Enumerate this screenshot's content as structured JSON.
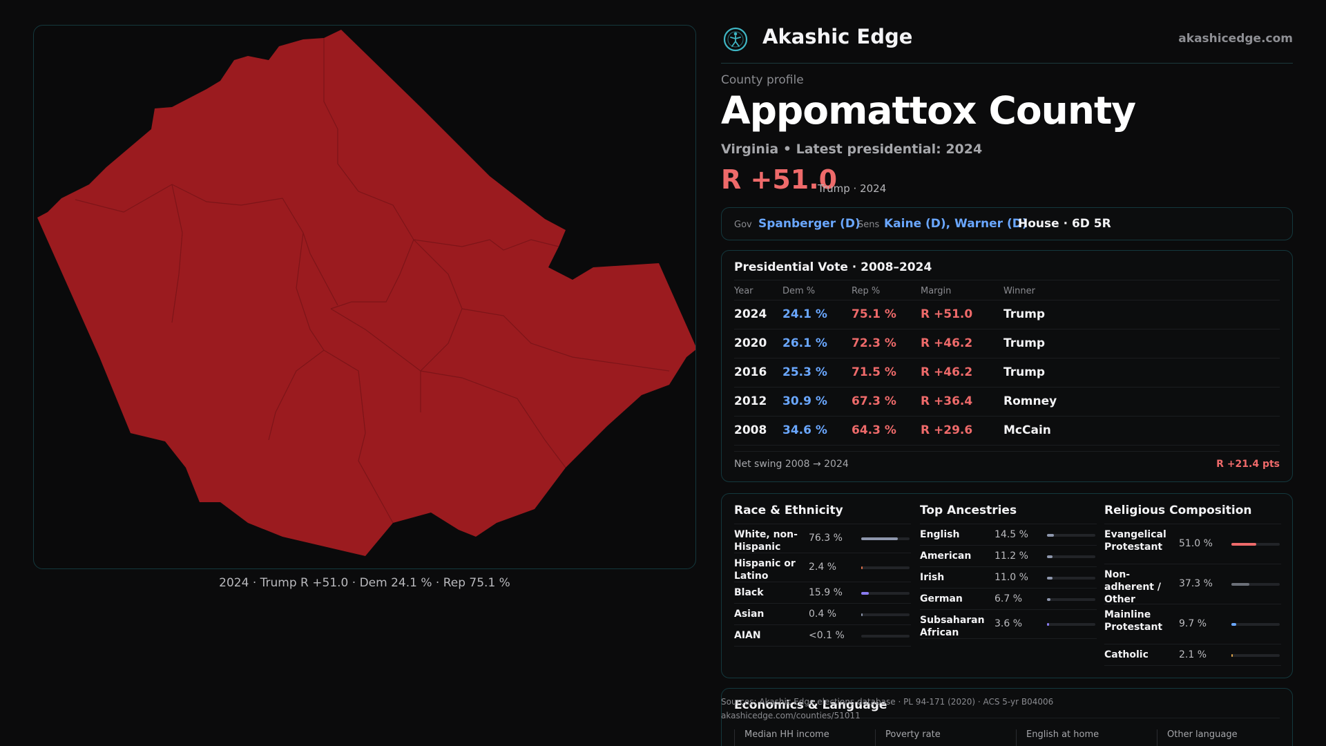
{
  "map": {
    "fill_color": "#9b1b1f",
    "caption": "2024 · Trump R +51.0 · Dem 24.1 % · Rep 75.1 %"
  },
  "brand": {
    "name": "Akashic Edge",
    "url": "akashicedge.com",
    "logo_icon": "globe-figure-icon"
  },
  "profile": {
    "eyebrow": "County profile",
    "title": "Appomattox County",
    "subline": "Virginia • Latest presidential: 2024",
    "margin": "R +51.0",
    "margin_sub": "Trump · 2024"
  },
  "officials": {
    "gov_label": "Gov",
    "gov_value": "Spanberger (D)",
    "sens_label": "Sens",
    "sens_value": "Kaine (D), Warner (D)",
    "house": "House · 6D 5R"
  },
  "presidential": {
    "title": "Presidential Vote · 2008–2024",
    "headers": {
      "year": "Year",
      "dem": "Dem %",
      "rep": "Rep %",
      "margin": "Margin",
      "winner": "Winner"
    },
    "rows": [
      {
        "year": "2024",
        "dem": "24.1 %",
        "rep": "75.1 %",
        "margin": "R +51.0",
        "winner": "Trump"
      },
      {
        "year": "2020",
        "dem": "26.1 %",
        "rep": "72.3 %",
        "margin": "R +46.2",
        "winner": "Trump"
      },
      {
        "year": "2016",
        "dem": "25.3 %",
        "rep": "71.5 %",
        "margin": "R +46.2",
        "winner": "Trump"
      },
      {
        "year": "2012",
        "dem": "30.9 %",
        "rep": "67.3 %",
        "margin": "R +36.4",
        "winner": "Romney"
      },
      {
        "year": "2008",
        "dem": "34.6 %",
        "rep": "64.3 %",
        "margin": "R +29.6",
        "winner": "McCain"
      }
    ],
    "swing_label": "Net swing 2008 → 2024",
    "swing_value": "R +21.4 pts"
  },
  "race": {
    "title": "Race & Ethnicity",
    "bar_color": "#8e97ad",
    "items": [
      {
        "label": "White, non-Hispanic",
        "pct": "76.3 %",
        "value": 0.763,
        "color": "#8e97ad"
      },
      {
        "label": "Hispanic or Latino",
        "pct": "2.4 %",
        "value": 0.024,
        "color": "#e0704a"
      },
      {
        "label": "Black",
        "pct": "15.9 %",
        "value": 0.159,
        "color": "#8a7cf0"
      },
      {
        "label": "Asian",
        "pct": "0.4 %",
        "value": 0.004,
        "color": "#8e97ad"
      },
      {
        "label": "AIAN",
        "pct": "<0.1 %",
        "value": 0.0,
        "color": "#8e97ad"
      }
    ]
  },
  "ancestry": {
    "title": "Top Ancestries",
    "items": [
      {
        "label": "English",
        "pct": "14.5 %",
        "value": 0.145,
        "color": "#8e97ad"
      },
      {
        "label": "American",
        "pct": "11.2 %",
        "value": 0.112,
        "color": "#8e97ad"
      },
      {
        "label": "Irish",
        "pct": "11.0 %",
        "value": 0.11,
        "color": "#8e97ad"
      },
      {
        "label": "German",
        "pct": "6.7 %",
        "value": 0.067,
        "color": "#8e97ad"
      },
      {
        "label": "Subsaharan African",
        "pct": "3.6 %",
        "value": 0.036,
        "color": "#8a7cf0"
      }
    ]
  },
  "religion": {
    "title": "Religious Composition",
    "items": [
      {
        "label": "Evangelical Protestant",
        "pct": "51.0 %",
        "value": 0.51,
        "color": "#ee6a6a"
      },
      {
        "label": "Non-adherent / Other",
        "pct": "37.3 %",
        "value": 0.373,
        "color": "#6b6f78"
      },
      {
        "label": "Mainline Protestant",
        "pct": "9.7 %",
        "value": 0.097,
        "color": "#6aa7ff"
      },
      {
        "label": "Catholic",
        "pct": "2.1 %",
        "value": 0.021,
        "color": "#e0a64a"
      }
    ]
  },
  "economics": {
    "title": "Economics & Language",
    "headers": [
      "Median HH income",
      "Poverty rate",
      "English at home",
      "Other language"
    ]
  },
  "sources": {
    "line1": "Sources: Akashic Edge elections database · PL 94-171 (2020) · ACS 5-yr B04006",
    "line2": "akashicedge.com/counties/51011"
  }
}
